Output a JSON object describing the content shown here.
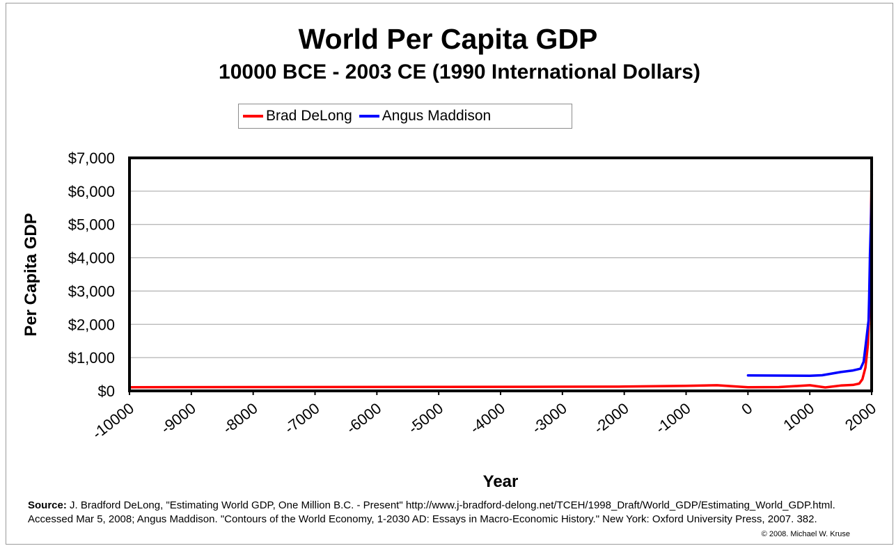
{
  "chart_data": {
    "type": "line",
    "title": "World Per Capita GDP",
    "subtitle": "10000 BCE - 2003 CE (1990 International Dollars)",
    "xlabel": "Year",
    "ylabel": "Per Capita GDP",
    "xlim": [
      -10000,
      2000
    ],
    "ylim": [
      0,
      7000
    ],
    "x_ticks": [
      "-10000",
      "-9000",
      "-8000",
      "-7000",
      "-6000",
      "-5000",
      "-4000",
      "-3000",
      "-2000",
      "-1000",
      "0",
      "1000",
      "2000"
    ],
    "y_ticks": [
      "$7,000",
      "$6,000",
      "$5,000",
      "$4,000",
      "$3,000",
      "$2,000",
      "$1,000",
      "$0"
    ],
    "y_tick_values": [
      7000,
      6000,
      5000,
      4000,
      3000,
      2000,
      1000,
      0
    ],
    "grid": "horizontal",
    "legend_position": "top",
    "series": [
      {
        "name": "Brad DeLong",
        "color": "#ff0000",
        "points": [
          [
            -10000,
            110
          ],
          [
            -8000,
            115
          ],
          [
            -5000,
            120
          ],
          [
            -3000,
            125
          ],
          [
            -2000,
            130
          ],
          [
            -1000,
            150
          ],
          [
            -500,
            170
          ],
          [
            0,
            110
          ],
          [
            500,
            115
          ],
          [
            1000,
            170
          ],
          [
            1250,
            105
          ],
          [
            1500,
            160
          ],
          [
            1700,
            180
          ],
          [
            1800,
            220
          ],
          [
            1850,
            350
          ],
          [
            1900,
            700
          ],
          [
            1940,
            1400
          ],
          [
            1960,
            2300
          ],
          [
            1980,
            4000
          ],
          [
            1990,
            5300
          ],
          [
            2000,
            6500
          ]
        ]
      },
      {
        "name": "Angus Maddison",
        "color": "#0000ff",
        "points": [
          [
            1,
            467
          ],
          [
            1000,
            453
          ],
          [
            1200,
            470
          ],
          [
            1500,
            566
          ],
          [
            1700,
            615
          ],
          [
            1820,
            667
          ],
          [
            1870,
            873
          ],
          [
            1913,
            1526
          ],
          [
            1940,
            1958
          ],
          [
            1950,
            2111
          ],
          [
            1960,
            2777
          ],
          [
            1970,
            3729
          ],
          [
            1973,
            4083
          ],
          [
            1980,
            4512
          ],
          [
            1990,
            5150
          ],
          [
            2000,
            6038
          ],
          [
            2003,
            6516
          ]
        ]
      }
    ]
  },
  "source": {
    "label": "Source:",
    "text": "J. Bradford DeLong, \"Estimating World GDP, One Million B.C. - Present\" http://www.j-bradford-delong.net/TCEH/1998_Draft/World_GDP/Estimating_World_GDP.html. Accessed Mar 5, 2008; Angus Maddison. \"Contours of the World Economy, 1-2030 AD: Essays in Macro-Economic History.\" New York: Oxford University Press, 2007. 382."
  },
  "copyright": "© 2008. Michael W. Kruse"
}
